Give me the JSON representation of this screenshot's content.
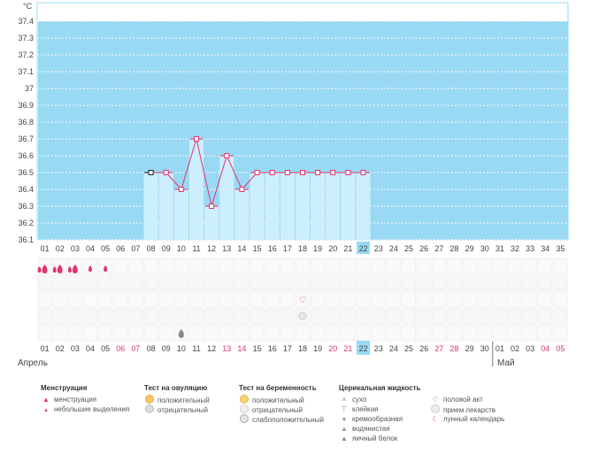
{
  "chart_data": {
    "type": "line",
    "y_unit": "°C",
    "ylim": [
      36.1,
      37.45
    ],
    "y_ticks": [
      "37.4",
      "37.3",
      "37.2",
      "37.1",
      "37",
      "36.9",
      "36.8",
      "36.7",
      "36.6",
      "36.5",
      "36.4",
      "36.3",
      "36.2",
      "36.1"
    ],
    "days": [
      "01",
      "02",
      "03",
      "04",
      "05",
      "06",
      "07",
      "08",
      "09",
      "10",
      "11",
      "12",
      "13",
      "14",
      "15",
      "16",
      "17",
      "18",
      "19",
      "20",
      "21",
      "22",
      "23",
      "24",
      "25",
      "26",
      "27",
      "28",
      "29",
      "30",
      "31",
      "32",
      "33",
      "34",
      "35"
    ],
    "today_index": 21,
    "series": [
      {
        "values": [
          null,
          null,
          null,
          null,
          null,
          null,
          null,
          36.5,
          36.5,
          36.4,
          36.7,
          36.3,
          36.6,
          36.4,
          36.5,
          36.5,
          36.5,
          36.5,
          36.5,
          36.5,
          36.5,
          36.5,
          null,
          null,
          null,
          null,
          null,
          null,
          null,
          null,
          null,
          null,
          null,
          null,
          null
        ]
      }
    ],
    "grid": true
  },
  "markers": {
    "menstruation_heavy": [
      0,
      1,
      2
    ],
    "menstruation_light": [
      3,
      4
    ],
    "intercourse": [
      17
    ],
    "medication": [
      17
    ],
    "cervical_egg_white": [
      9
    ]
  },
  "calendar": {
    "dates": [
      "01",
      "02",
      "03",
      "04",
      "05",
      "06",
      "07",
      "08",
      "09",
      "10",
      "11",
      "12",
      "13",
      "14",
      "15",
      "16",
      "17",
      "18",
      "19",
      "20",
      "21",
      "22",
      "23",
      "24",
      "25",
      "26",
      "27",
      "28",
      "29",
      "30",
      "01",
      "02",
      "03",
      "04",
      "05"
    ],
    "weekend_indices": [
      5,
      6,
      12,
      13,
      19,
      20,
      26,
      27,
      33,
      34
    ],
    "today_index": 21,
    "month_start": "Апрель",
    "month_next": "Май"
  },
  "colors": {
    "cycle_area": "#99d9f4",
    "bar_fill": "#cdeefc",
    "line": "#e0366e",
    "weekend": "#e0366e",
    "today": "#99d9f4"
  },
  "legend": {
    "menstruation": {
      "title": "Менструация",
      "items": [
        "менструация",
        "небольшие выделения"
      ]
    },
    "ovulation": {
      "title": "Тест на овуляцию",
      "items": [
        "положительный",
        "отрицательный"
      ]
    },
    "pregnancy": {
      "title": "Тест на беременность",
      "items": [
        "положительный",
        "отрицательный",
        "слабоположительный"
      ]
    },
    "cervical": {
      "title": "Церикальная жидкость",
      "items": [
        "сухо",
        "клейкая",
        "кремообразная",
        "водянистая",
        "яичный белок"
      ]
    },
    "other": {
      "items": [
        "половой акт",
        "прием лекарств",
        "лунный календарь"
      ]
    }
  },
  "icons": [
    "drop-icon",
    "small-drop-icon",
    "heart-icon",
    "pill-icon",
    "moon-icon",
    "cross-icon"
  ]
}
